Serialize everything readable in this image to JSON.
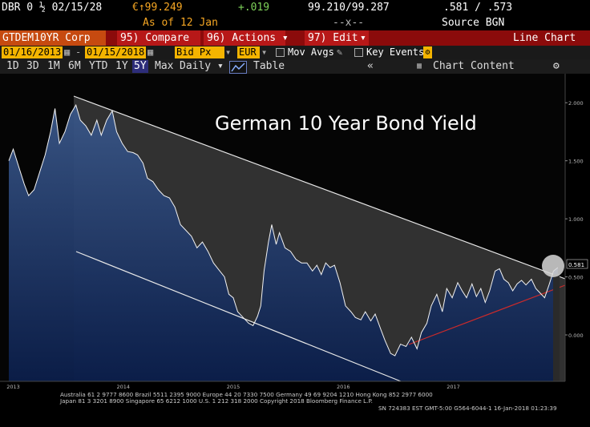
{
  "ticker_row": {
    "security": "DBR 0 ½ 02/15/28",
    "price": "€↑99.249",
    "change": "+.019",
    "bid_ask": "99.210/99.287",
    "yields": ".581 / .573"
  },
  "asof_row": {
    "as_of": "As of  12 Jan",
    "dashes": "--x--",
    "source": "Source BGN"
  },
  "toolbar": {
    "ticker": "GTDEM10YR Corp",
    "compare": "95) Compare",
    "actions": "96) Actions ▾",
    "edit": "97) Edit",
    "edit_arrow": "▾",
    "chart_type": "Line Chart"
  },
  "date_bar": {
    "start_date": "01/16/2013",
    "end_date": "01/15/2018",
    "field": "Bid Px",
    "currency": "EUR",
    "mov_avgs": "Mov Avgs",
    "key_events": "Key Events"
  },
  "period_bar": {
    "periods": [
      "1D",
      "3D",
      "1M",
      "6M",
      "YTD",
      "1Y",
      "5Y"
    ],
    "active": "5Y",
    "max": "Max",
    "frequency": "Daily ▾",
    "table": "Table",
    "collapse": "«",
    "chart_content": "Chart Content",
    "settings": "⚙"
  },
  "chart_data": {
    "type": "line",
    "title": "German 10 Year Bond Yield",
    "x_tick_labels": [
      "2013",
      "2014",
      "2015",
      "2016",
      "2017"
    ],
    "y_tick_labels": [
      "2.000",
      "1.500",
      "1.000",
      "0.500",
      "0.000"
    ],
    "ylim": [
      -0.4,
      2.25
    ],
    "last_value_label": "0.581",
    "series": [
      {
        "values": [
          [
            2013.04,
            1.5
          ],
          [
            2013.08,
            1.6
          ],
          [
            2013.13,
            1.45
          ],
          [
            2013.18,
            1.3
          ],
          [
            2013.22,
            1.2
          ],
          [
            2013.27,
            1.25
          ],
          [
            2013.32,
            1.4
          ],
          [
            2013.37,
            1.55
          ],
          [
            2013.42,
            1.75
          ],
          [
            2013.46,
            1.95
          ],
          [
            2013.5,
            1.65
          ],
          [
            2013.55,
            1.75
          ],
          [
            2013.6,
            1.9
          ],
          [
            2013.65,
            1.98
          ],
          [
            2013.69,
            1.85
          ],
          [
            2013.74,
            1.8
          ],
          [
            2013.79,
            1.72
          ],
          [
            2013.84,
            1.85
          ],
          [
            2013.88,
            1.72
          ],
          [
            2013.93,
            1.85
          ],
          [
            2013.98,
            1.93
          ],
          [
            2014.02,
            1.75
          ],
          [
            2014.07,
            1.65
          ],
          [
            2014.12,
            1.58
          ],
          [
            2014.17,
            1.57
          ],
          [
            2014.21,
            1.55
          ],
          [
            2014.26,
            1.48
          ],
          [
            2014.3,
            1.35
          ],
          [
            2014.35,
            1.32
          ],
          [
            2014.4,
            1.25
          ],
          [
            2014.45,
            1.2
          ],
          [
            2014.5,
            1.18
          ],
          [
            2014.55,
            1.1
          ],
          [
            2014.6,
            0.95
          ],
          [
            2014.65,
            0.9
          ],
          [
            2014.7,
            0.85
          ],
          [
            2014.75,
            0.75
          ],
          [
            2014.8,
            0.8
          ],
          [
            2014.85,
            0.72
          ],
          [
            2014.9,
            0.62
          ],
          [
            2014.95,
            0.56
          ],
          [
            2015.0,
            0.5
          ],
          [
            2015.04,
            0.35
          ],
          [
            2015.08,
            0.32
          ],
          [
            2015.12,
            0.2
          ],
          [
            2015.17,
            0.15
          ],
          [
            2015.22,
            0.1
          ],
          [
            2015.26,
            0.08
          ],
          [
            2015.3,
            0.16
          ],
          [
            2015.33,
            0.25
          ],
          [
            2015.36,
            0.55
          ],
          [
            2015.4,
            0.8
          ],
          [
            2015.43,
            0.95
          ],
          [
            2015.47,
            0.78
          ],
          [
            2015.5,
            0.88
          ],
          [
            2015.55,
            0.75
          ],
          [
            2015.6,
            0.72
          ],
          [
            2015.65,
            0.65
          ],
          [
            2015.7,
            0.62
          ],
          [
            2015.75,
            0.62
          ],
          [
            2015.8,
            0.55
          ],
          [
            2015.84,
            0.6
          ],
          [
            2015.88,
            0.52
          ],
          [
            2015.92,
            0.62
          ],
          [
            2015.96,
            0.58
          ],
          [
            2016.0,
            0.6
          ],
          [
            2016.05,
            0.45
          ],
          [
            2016.1,
            0.25
          ],
          [
            2016.15,
            0.2
          ],
          [
            2016.19,
            0.15
          ],
          [
            2016.24,
            0.13
          ],
          [
            2016.28,
            0.2
          ],
          [
            2016.33,
            0.12
          ],
          [
            2016.37,
            0.18
          ],
          [
            2016.42,
            0.05
          ],
          [
            2016.46,
            -0.05
          ],
          [
            2016.51,
            -0.16
          ],
          [
            2016.55,
            -0.18
          ],
          [
            2016.6,
            -0.08
          ],
          [
            2016.65,
            -0.1
          ],
          [
            2016.7,
            -0.02
          ],
          [
            2016.75,
            -0.12
          ],
          [
            2016.79,
            0.02
          ],
          [
            2016.84,
            0.1
          ],
          [
            2016.88,
            0.25
          ],
          [
            2016.93,
            0.35
          ],
          [
            2016.98,
            0.2
          ],
          [
            2017.02,
            0.4
          ],
          [
            2017.07,
            0.32
          ],
          [
            2017.12,
            0.45
          ],
          [
            2017.16,
            0.38
          ],
          [
            2017.2,
            0.32
          ],
          [
            2017.25,
            0.44
          ],
          [
            2017.29,
            0.33
          ],
          [
            2017.33,
            0.4
          ],
          [
            2017.37,
            0.28
          ],
          [
            2017.41,
            0.38
          ],
          [
            2017.46,
            0.55
          ],
          [
            2017.5,
            0.57
          ],
          [
            2017.54,
            0.48
          ],
          [
            2017.58,
            0.45
          ],
          [
            2017.62,
            0.38
          ],
          [
            2017.66,
            0.44
          ],
          [
            2017.7,
            0.47
          ],
          [
            2017.74,
            0.43
          ],
          [
            2017.79,
            0.48
          ],
          [
            2017.83,
            0.4
          ],
          [
            2017.87,
            0.36
          ],
          [
            2017.91,
            0.32
          ],
          [
            2017.95,
            0.43
          ],
          [
            2017.99,
            0.55
          ],
          [
            2018.03,
            0.58
          ]
        ]
      }
    ]
  },
  "footer": {
    "line1": "Australia 61 2 9777 8600  Brazil 5511 2395 9000  Europe 44 20 7330 7500  Germany 49 69 9204 1210  Hong Kong 852 2977 6000",
    "line2": "Japan 81 3 3201 8900        Singapore 65 6212 1000        U.S. 1 212 318 2000        Copyright 2018 Bloomberg Finance L.P.",
    "line3": "SN 724383 EST  GMT-5:00 G564-6044-1 16-Jan-2018 01:23:39"
  }
}
